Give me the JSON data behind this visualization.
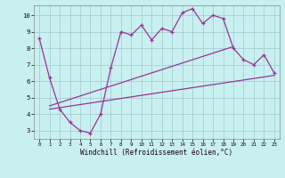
{
  "bg_color": "#c8f0f0",
  "grid_color": "#a0c8c8",
  "line_color": "#993399",
  "xlabel": "Windchill (Refroidissement éolien,°C)",
  "x_values": [
    0,
    1,
    2,
    3,
    4,
    5,
    6,
    7,
    8,
    9,
    10,
    11,
    12,
    13,
    14,
    15,
    16,
    17,
    18,
    19,
    20,
    21,
    22,
    23
  ],
  "y_main": [
    8.6,
    6.2,
    4.3,
    3.5,
    3.0,
    2.85,
    4.0,
    6.8,
    9.0,
    8.8,
    9.4,
    8.5,
    9.2,
    9.0,
    10.15,
    10.4,
    9.5,
    10.0,
    9.8,
    8.0,
    7.3,
    7.0,
    7.6,
    6.5
  ],
  "y_upper_start": 4.5,
  "y_upper_end": 8.1,
  "y_upper_x_start": 1,
  "y_upper_x_end": 19,
  "y_lower_start": 4.3,
  "y_lower_end": 6.35,
  "y_lower_x_start": 1,
  "y_lower_x_end": 23,
  "ylim": [
    2.5,
    10.6
  ],
  "xlim": [
    -0.5,
    23.5
  ],
  "yticks": [
    3,
    4,
    5,
    6,
    7,
    8,
    9,
    10
  ],
  "xticks": [
    0,
    1,
    2,
    3,
    4,
    5,
    6,
    7,
    8,
    9,
    10,
    11,
    12,
    13,
    14,
    15,
    16,
    17,
    18,
    19,
    20,
    21,
    22,
    23
  ]
}
